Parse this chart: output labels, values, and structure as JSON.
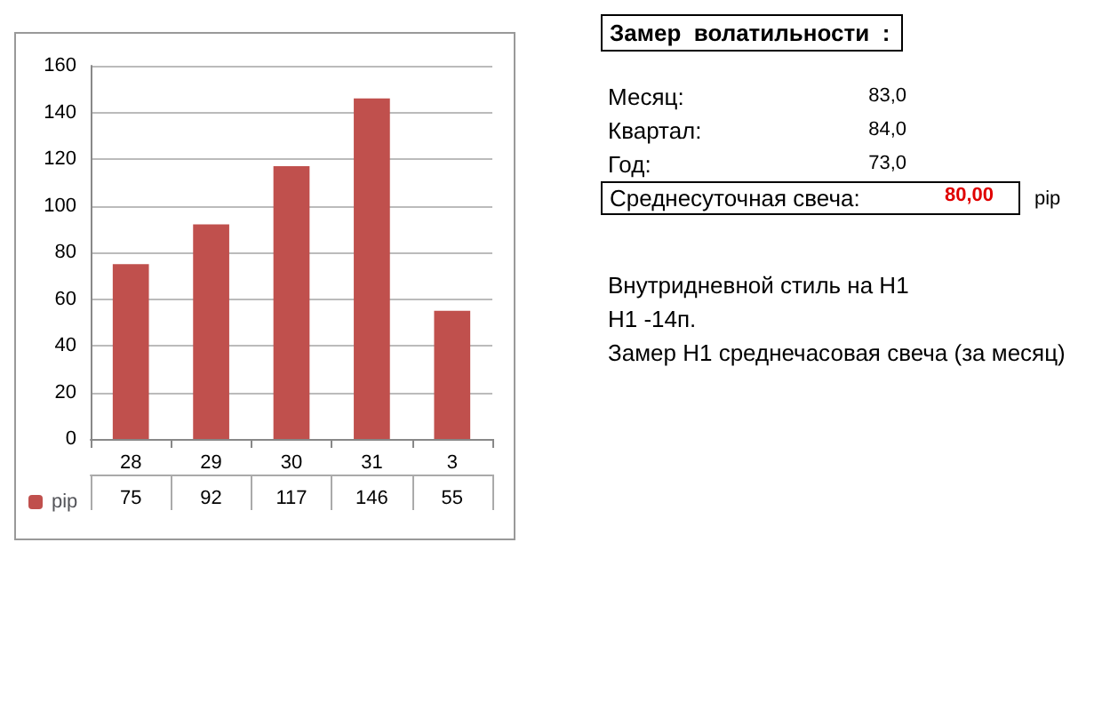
{
  "chart_data": [
    {
      "type": "bar",
      "categories": [
        "28",
        "29",
        "30",
        "31",
        "3"
      ],
      "series": [
        {
          "name": "pip",
          "color": "#c0504d",
          "values": [
            75,
            92,
            117,
            146,
            55
          ]
        }
      ],
      "ylim": [
        0,
        160
      ],
      "yticks": [
        0,
        20,
        40,
        60,
        80,
        100,
        120,
        140,
        160
      ],
      "grid": "y",
      "legend": "bottom left",
      "data_labels": true
    },
    {
      "type": "other",
      "title": "Замер  волатильности  :",
      "annotations": [
        "Месяц:",
        "83,0",
        "Квартал:",
        "84,0",
        "Год:",
        "73,0",
        "Среднесуточная свеча:",
        "80,00",
        "pip",
        "Внутридневной стиль на H1",
        "H1 -14п.",
        "Замер H1 среднечасовая свеча (за месяц)"
      ]
    }
  ]
}
